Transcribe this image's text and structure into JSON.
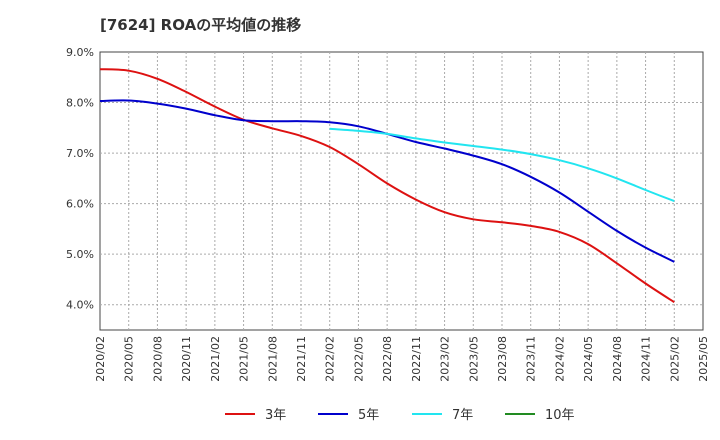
{
  "chart_data": {
    "type": "line",
    "title": "[7624]  ROAの平均値の推移",
    "xlabel": "",
    "ylabel": "",
    "ylim": [
      3.5,
      9.0
    ],
    "y_ticks": [
      4.0,
      5.0,
      6.0,
      7.0,
      8.0,
      9.0
    ],
    "y_tick_labels": [
      "4.0%",
      "5.0%",
      "6.0%",
      "7.0%",
      "8.0%",
      "9.0%"
    ],
    "x": [
      "2020/02",
      "2020/05",
      "2020/08",
      "2020/11",
      "2021/02",
      "2021/05",
      "2021/08",
      "2021/11",
      "2022/02",
      "2022/05",
      "2022/08",
      "2022/11",
      "2023/02",
      "2023/05",
      "2023/08",
      "2023/11",
      "2024/02",
      "2024/05",
      "2024/08",
      "2024/11",
      "2025/02",
      "2025/05"
    ],
    "grid": true,
    "legend_position": "bottom",
    "series": [
      {
        "name": "3年",
        "color": "#dd1111",
        "values": [
          8.66,
          8.63,
          8.47,
          8.21,
          7.92,
          7.66,
          7.49,
          7.34,
          7.12,
          6.78,
          6.4,
          6.08,
          5.83,
          5.69,
          5.63,
          5.56,
          5.44,
          5.2,
          4.82,
          4.42,
          4.05,
          null
        ]
      },
      {
        "name": "5年",
        "color": "#0000cc",
        "values": [
          8.03,
          8.04,
          7.98,
          7.88,
          7.75,
          7.65,
          7.63,
          7.63,
          7.61,
          7.53,
          7.38,
          7.22,
          7.09,
          6.95,
          6.78,
          6.53,
          6.22,
          5.84,
          5.46,
          5.13,
          4.85,
          null
        ]
      },
      {
        "name": "7年",
        "color": "#22e5f0",
        "values": [
          null,
          null,
          null,
          null,
          null,
          null,
          null,
          null,
          7.48,
          7.44,
          7.38,
          7.29,
          7.21,
          7.14,
          7.07,
          6.98,
          6.86,
          6.7,
          6.5,
          6.27,
          6.05,
          null
        ]
      },
      {
        "name": "10年",
        "color": "#228b22",
        "values": [
          null,
          null,
          null,
          null,
          null,
          null,
          null,
          null,
          null,
          null,
          null,
          null,
          null,
          null,
          null,
          null,
          null,
          null,
          null,
          null,
          null,
          null
        ]
      }
    ]
  }
}
